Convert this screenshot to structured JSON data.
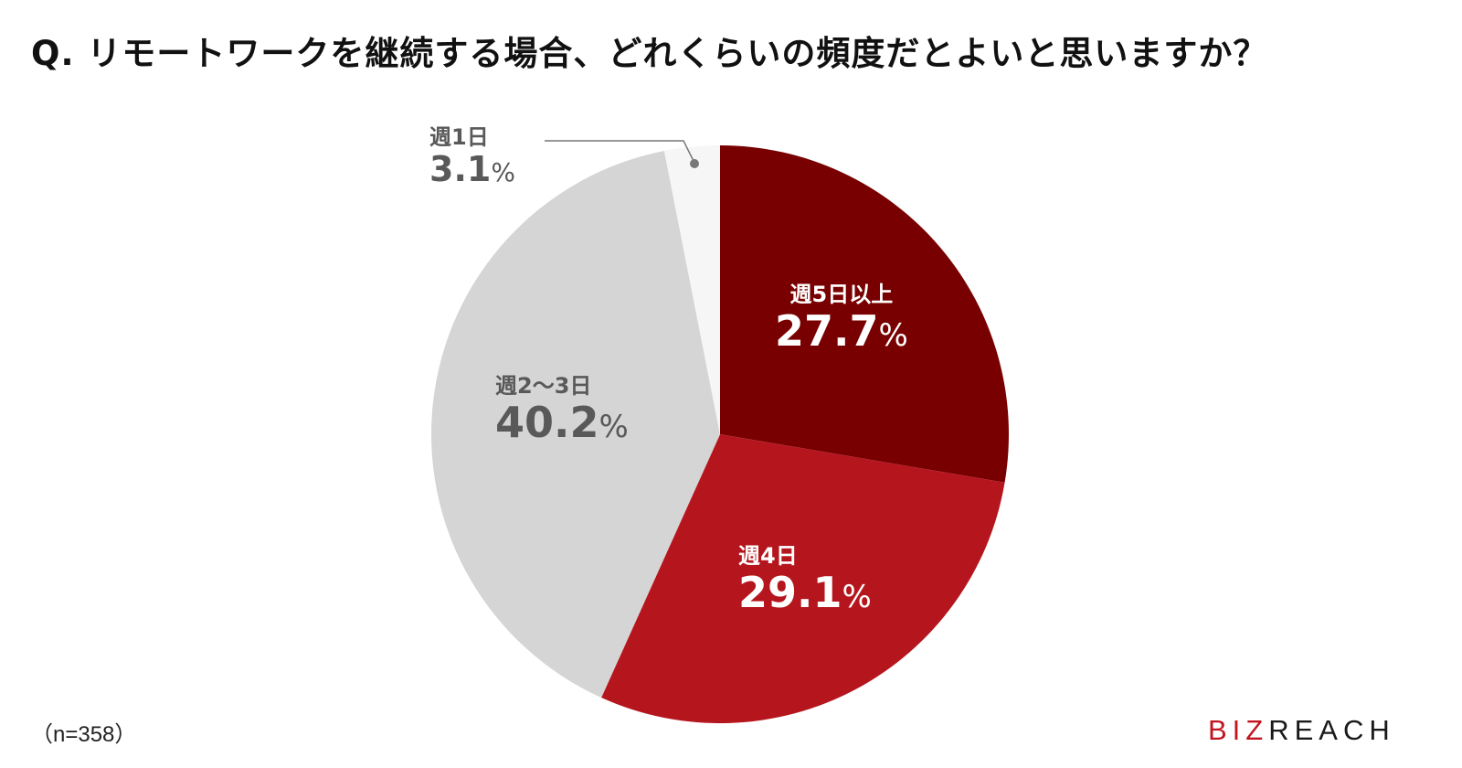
{
  "title": "Q. リモートワークを継続する場合、どれくらいの頻度だとよいと思いますか？",
  "sample": "（n=358）",
  "logo": {
    "biz": "BIZ",
    "reach": "REACH"
  },
  "labels": [
    {
      "cat": "週5日以上",
      "pct": "27.7",
      "unit": "%"
    },
    {
      "cat": "週4日",
      "pct": "29.1",
      "unit": "%"
    },
    {
      "cat": "週2〜3日",
      "pct": "40.2",
      "unit": "%"
    },
    {
      "cat": "週1日",
      "pct": "3.1",
      "unit": "%"
    }
  ],
  "chart_data": {
    "type": "pie",
    "title": "Q. リモートワークを継続する場合、どれくらいの頻度だとよいと思いますか？",
    "categories": [
      "週5日以上",
      "週4日",
      "週2〜3日",
      "週1日"
    ],
    "values": [
      27.7,
      29.1,
      40.2,
      3.1
    ],
    "unit": "%",
    "colors": [
      "#780000",
      "#b5161e",
      "#d5d5d5",
      "#f6f6f6"
    ],
    "start_angle": "12 o'clock",
    "direction": "clockwise",
    "n": 358,
    "legend": "none (inline labels)"
  }
}
